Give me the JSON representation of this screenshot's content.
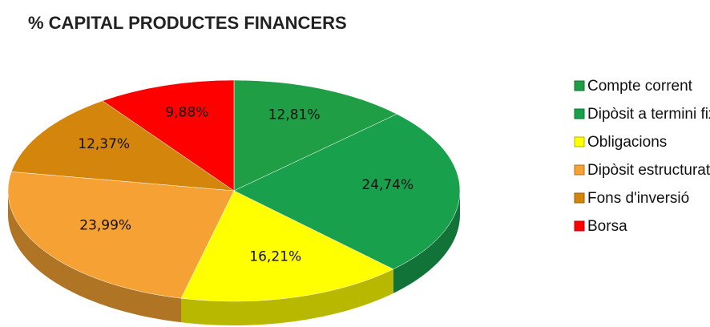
{
  "chart_data": {
    "type": "pie",
    "title": "% CAPITAL PRODUCTES FINANCERS",
    "categories": [
      "Compte corrent",
      "Dipòsit a termini fix",
      "Obligacions",
      "Dipòsit estructurat",
      "Fons d'inversió",
      "Borsa"
    ],
    "values": [
      12.81,
      24.74,
      16.21,
      23.99,
      12.37,
      9.88
    ],
    "value_labels": [
      "12,81%",
      "24,74%",
      "16,21%",
      "23,99%",
      "12,37%",
      "9,88%"
    ],
    "colors": [
      "#1f9e45",
      "#18a04c",
      "#ffff00",
      "#f5a133",
      "#d4860c",
      "#ff0000"
    ],
    "legend": "right"
  }
}
